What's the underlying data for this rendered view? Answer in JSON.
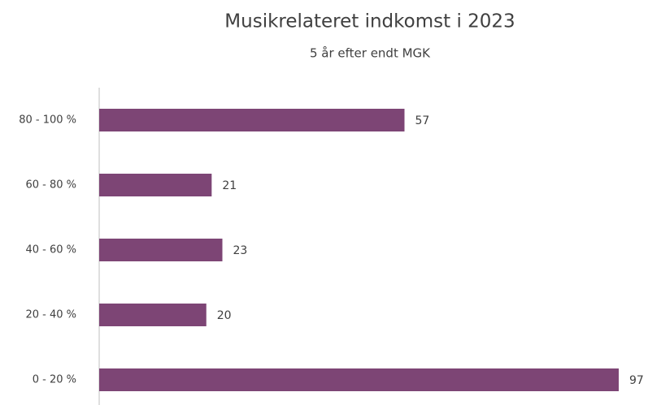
{
  "chart_data": {
    "type": "hbar",
    "title": "Musikrelateret indkomst i 2023",
    "subtitle": "5 år efter endt MGK",
    "categories": [
      "80 - 100 %",
      "60 - 80 %",
      "40 - 60 %",
      "20 - 40 %",
      "0 - 20 %"
    ],
    "values": [
      57,
      21,
      23,
      20,
      97
    ],
    "color": "#7d4575"
  }
}
